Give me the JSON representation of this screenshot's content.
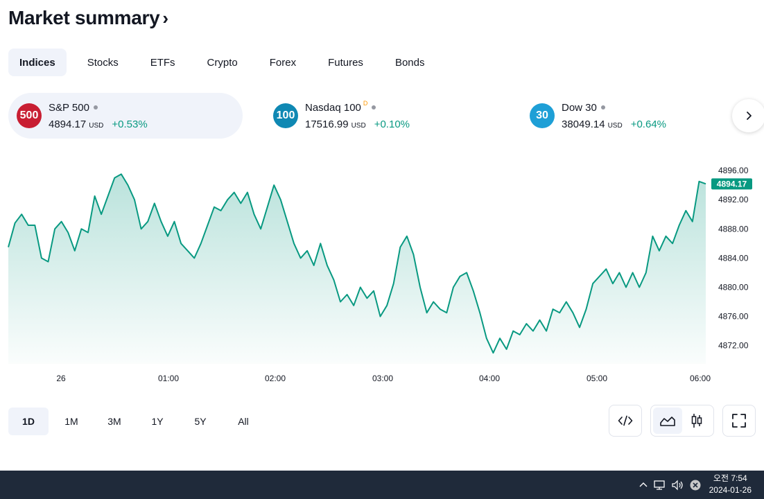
{
  "header": {
    "title": "Market summary",
    "chevron": "›"
  },
  "tabs": [
    {
      "label": "Indices",
      "active": true
    },
    {
      "label": "Stocks"
    },
    {
      "label": "ETFs"
    },
    {
      "label": "Crypto"
    },
    {
      "label": "Forex"
    },
    {
      "label": "Futures"
    },
    {
      "label": "Bonds"
    }
  ],
  "cards": [
    {
      "badge": "500",
      "badge_color": "#c81e32",
      "name": "S&P 500",
      "value": "4894.17",
      "unit": "USD",
      "change": "+0.53%",
      "active": true
    },
    {
      "badge": "100",
      "badge_color": "#0f88b3",
      "name": "Nasdaq 100",
      "delayed_mark": "D",
      "value": "17516.99",
      "unit": "USD",
      "change": "+0.10%"
    },
    {
      "badge": "30",
      "badge_color": "#1e9fd6",
      "name": "Dow 30",
      "value": "38049.14",
      "unit": "USD",
      "change": "+0.64%"
    }
  ],
  "chart_data": {
    "type": "area",
    "series": [
      {
        "values": [
          4885.5,
          4888.8,
          4890,
          4888.5,
          4888.5,
          4884,
          4883.5,
          4888,
          4889,
          4887.5,
          4885,
          4888,
          4887.5,
          4892.5,
          4890,
          4892.5,
          4895,
          4895.5,
          4894,
          4892,
          4888,
          4889,
          4891.5,
          4889,
          4887,
          4889,
          4886,
          4885,
          4884,
          4886,
          4888.5,
          4891,
          4890.5,
          4892,
          4893,
          4891.5,
          4893,
          4890,
          4888,
          4891,
          4894,
          4892,
          4889,
          4886,
          4884,
          4885,
          4883,
          4886,
          4883,
          4881,
          4878,
          4879,
          4877.5,
          4880,
          4878.5,
          4879.5,
          4876,
          4877.5,
          4880.5,
          4885.5,
          4887,
          4884.5,
          4880,
          4876.5,
          4878,
          4877,
          4876.5,
          4880,
          4881.5,
          4882,
          4879.5,
          4876.5,
          4873,
          4871,
          4873,
          4871.5,
          4874,
          4873.5,
          4875,
          4874,
          4875.5,
          4874,
          4877,
          4876.5,
          4878,
          4876.5,
          4874.5,
          4877,
          4880.5,
          4881.5,
          4882.5,
          4880.5,
          4882,
          4880,
          4882,
          4880,
          4882,
          4887,
          4885,
          4887,
          4886,
          4888.5,
          4890.5,
          4889,
          4894.5,
          4894.17
        ]
      }
    ],
    "x_ticks": [
      "26",
      "01:00",
      "02:00",
      "03:00",
      "04:00",
      "05:00",
      "06:00"
    ],
    "y_ticks": [
      "4896.00",
      "4892.00",
      "4888.00",
      "4884.00",
      "4880.00",
      "4876.00",
      "4872.00"
    ],
    "ylim": [
      4869.5,
      4898
    ],
    "last_label": "4894.17",
    "line_color": "#089981",
    "grid": false
  },
  "ranges": [
    {
      "label": "1D",
      "active": true
    },
    {
      "label": "1M"
    },
    {
      "label": "3M"
    },
    {
      "label": "1Y"
    },
    {
      "label": "5Y"
    },
    {
      "label": "All"
    }
  ],
  "tools": {
    "embed_icon": "code-icon",
    "area_icon": "area-chart-icon",
    "candle_icon": "candlestick-icon",
    "fullscreen_icon": "fullscreen-icon"
  },
  "taskbar": {
    "time": "오전 7:54",
    "date": "2024-01-26"
  }
}
